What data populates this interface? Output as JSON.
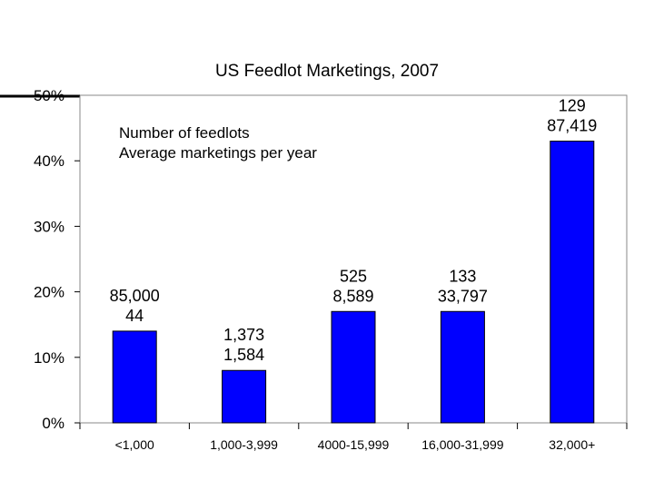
{
  "chart_data": {
    "type": "bar",
    "title": "US Feedlot Marketings, 2007",
    "categories": [
      "<1,000",
      "1,000-3,999",
      "4000-15,999",
      "16,000-31,999",
      "32,000+"
    ],
    "values": [
      14,
      8,
      17,
      17,
      43
    ],
    "ylim": [
      0,
      50
    ],
    "yticks": [
      "0%",
      "10%",
      "20%",
      "30%",
      "40%",
      "50%"
    ],
    "ytick_values": [
      0,
      10,
      20,
      30,
      40,
      50
    ],
    "data_labels": [
      {
        "line1": "85,000",
        "line2": "44"
      },
      {
        "line1": "1,373",
        "line2": "1,584"
      },
      {
        "line1": "525",
        "line2": "8,589"
      },
      {
        "line1": "133",
        "line2": "33,797"
      },
      {
        "line1": "129",
        "line2": "87,419"
      }
    ],
    "legend": {
      "line1": "Number of feedlots",
      "line2": "Average marketings per year",
      "placement": "top-left"
    },
    "bar_color": "#0000ff",
    "grid": false
  }
}
